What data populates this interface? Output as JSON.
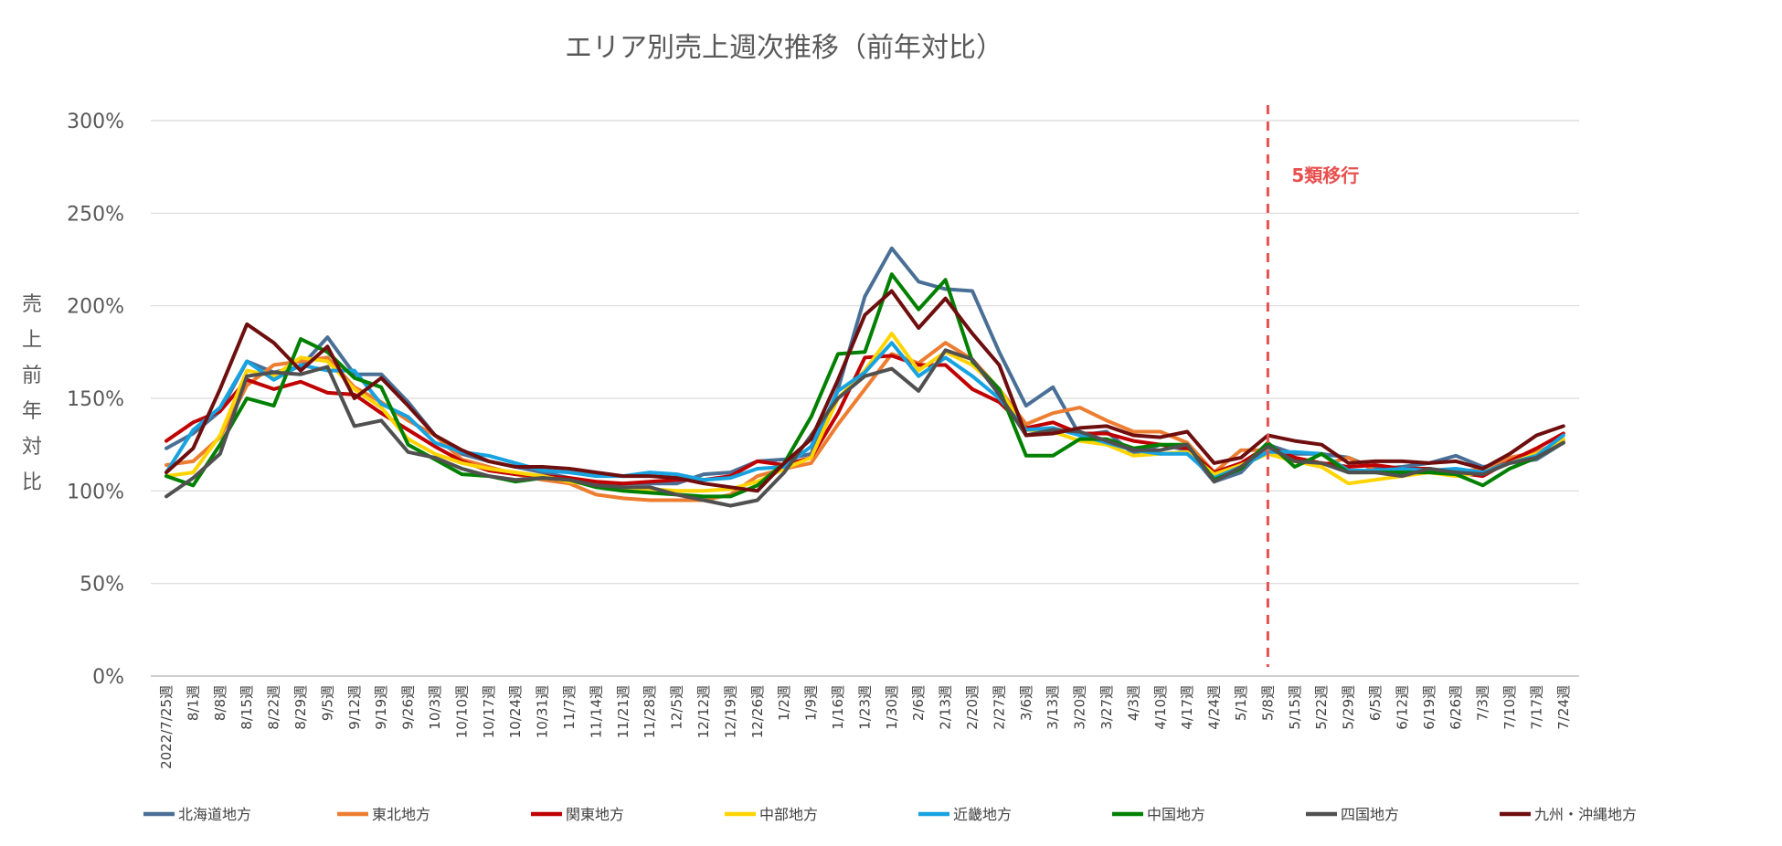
{
  "chart_data": {
    "type": "line",
    "title": "エリア別売上週次推移（前年対比）",
    "ylabel": "売上前年対比",
    "xlabel": "",
    "ylim": [
      0,
      300
    ],
    "yticks": [
      0,
      50,
      100,
      150,
      200,
      250,
      300
    ],
    "ytick_labels": [
      "0%",
      "50%",
      "100%",
      "150%",
      "200%",
      "250%",
      "300%"
    ],
    "grid": true,
    "legend_position": "bottom",
    "categories": [
      "2022/7/25週",
      "8/1週",
      "8/8週",
      "8/15週",
      "8/22週",
      "8/29週",
      "9/5週",
      "9/12週",
      "9/19週",
      "9/26週",
      "10/3週",
      "10/10週",
      "10/17週",
      "10/24週",
      "10/31週",
      "11/7週",
      "11/14週",
      "11/21週",
      "11/28週",
      "12/5週",
      "12/12週",
      "12/19週",
      "12/26週",
      "1/2週",
      "1/9週",
      "1/16週",
      "1/23週",
      "1/30週",
      "2/6週",
      "2/13週",
      "2/20週",
      "2/27週",
      "3/6週",
      "3/13週",
      "3/20週",
      "3/27週",
      "4/3週",
      "4/10週",
      "4/17週",
      "4/24週",
      "5/1週",
      "5/8週",
      "5/15週",
      "5/22週",
      "5/29週",
      "6/5週",
      "6/12週",
      "6/19週",
      "6/26週",
      "7/3週",
      "7/10週",
      "7/17週",
      "7/24週"
    ],
    "annotation": {
      "label": "5類移行",
      "at": "5/8週",
      "color": "#e8504f"
    },
    "series": [
      {
        "name": "北海道地方",
        "color": "#4a6f96",
        "values": [
          123,
          131,
          143,
          170,
          164,
          167,
          183,
          163,
          163,
          148,
          130,
          120,
          116,
          113,
          110,
          107,
          104,
          104,
          104,
          104,
          109,
          110,
          116,
          117,
          120,
          155,
          205,
          231,
          213,
          209,
          208,
          175,
          146,
          156,
          130,
          132,
          120,
          125,
          122,
          105,
          110,
          125,
          120,
          120,
          118,
          112,
          113,
          115,
          119,
          113,
          115,
          117,
          126
        ]
      },
      {
        "name": "東北地方",
        "color": "#ed7d31",
        "values": [
          114,
          116,
          129,
          157,
          168,
          170,
          172,
          156,
          148,
          138,
          130,
          117,
          113,
          109,
          106,
          104,
          98,
          96,
          95,
          95,
          95,
          98,
          108,
          112,
          115,
          136,
          155,
          174,
          169,
          180,
          171,
          155,
          136,
          142,
          145,
          138,
          132,
          132,
          126,
          110,
          122,
          122,
          118,
          114,
          118,
          111,
          110,
          112,
          110,
          112,
          118,
          121,
          127
        ]
      },
      {
        "name": "関東地方",
        "color": "#c00000",
        "values": [
          127,
          137,
          143,
          160,
          155,
          159,
          153,
          152,
          142,
          133,
          124,
          116,
          111,
          109,
          108,
          107,
          105,
          104,
          105,
          106,
          106,
          108,
          116,
          114,
          118,
          142,
          172,
          173,
          168,
          168,
          155,
          148,
          134,
          137,
          131,
          131,
          127,
          125,
          123,
          110,
          115,
          124,
          118,
          115,
          113,
          114,
          112,
          112,
          110,
          108,
          116,
          123,
          131
        ]
      },
      {
        "name": "中部地方",
        "color": "#ffd400",
        "values": [
          108,
          110,
          130,
          165,
          162,
          172,
          170,
          155,
          145,
          128,
          120,
          115,
          112,
          110,
          108,
          105,
          103,
          101,
          101,
          100,
          100,
          101,
          105,
          112,
          118,
          150,
          165,
          185,
          165,
          175,
          168,
          155,
          133,
          132,
          127,
          125,
          119,
          120,
          121,
          109,
          114,
          120,
          116,
          113,
          104,
          106,
          108,
          110,
          108,
          110,
          115,
          120,
          128
        ]
      },
      {
        "name": "近畿地方",
        "color": "#17a2e0",
        "values": [
          110,
          133,
          145,
          170,
          160,
          168,
          165,
          165,
          147,
          140,
          126,
          121,
          119,
          115,
          111,
          110,
          108,
          108,
          110,
          109,
          106,
          107,
          112,
          113,
          124,
          154,
          164,
          180,
          162,
          172,
          162,
          150,
          133,
          134,
          130,
          126,
          122,
          120,
          120,
          107,
          113,
          121,
          121,
          120,
          111,
          111,
          112,
          111,
          112,
          110,
          115,
          119,
          130
        ]
      },
      {
        "name": "中国地方",
        "color": "#008000",
        "values": [
          108,
          103,
          125,
          150,
          146,
          182,
          175,
          161,
          156,
          125,
          117,
          109,
          108,
          105,
          107,
          106,
          102,
          100,
          99,
          98,
          97,
          97,
          103,
          115,
          140,
          174,
          175,
          217,
          198,
          214,
          170,
          155,
          119,
          119,
          128,
          128,
          123,
          125,
          125,
          106,
          112,
          126,
          113,
          120,
          110,
          110,
          110,
          110,
          109,
          103,
          112,
          118,
          126
        ]
      },
      {
        "name": "四国地方",
        "color": "#505050",
        "values": [
          97,
          107,
          120,
          162,
          164,
          163,
          167,
          135,
          138,
          121,
          118,
          112,
          108,
          106,
          107,
          106,
          103,
          102,
          102,
          98,
          95,
          92,
          95,
          110,
          130,
          150,
          162,
          166,
          154,
          176,
          171,
          152,
          130,
          133,
          132,
          127,
          122,
          122,
          125,
          105,
          113,
          124,
          116,
          115,
          110,
          110,
          108,
          112,
          110,
          109,
          115,
          118,
          126
        ]
      },
      {
        "name": "九州・沖縄地方",
        "color": "#6e0e0e",
        "values": [
          110,
          123,
          155,
          190,
          180,
          165,
          178,
          150,
          161,
          146,
          130,
          122,
          116,
          113,
          113,
          112,
          110,
          108,
          108,
          107,
          104,
          102,
          100,
          115,
          128,
          160,
          195,
          208,
          188,
          204,
          185,
          168,
          130,
          131,
          134,
          135,
          130,
          129,
          132,
          115,
          118,
          130,
          127,
          125,
          115,
          116,
          116,
          115,
          116,
          112,
          120,
          130,
          135
        ]
      }
    ]
  }
}
